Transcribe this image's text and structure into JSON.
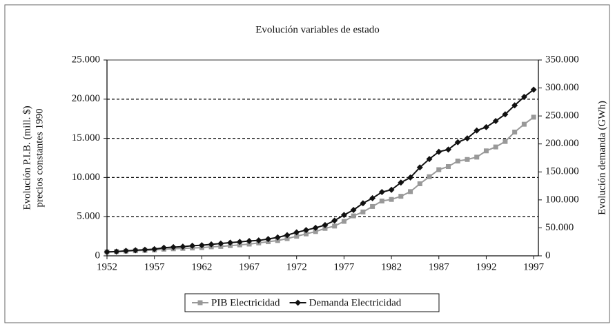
{
  "chart_data": {
    "type": "line",
    "title": "Evolución variables de estado",
    "y_label_lines": [
      "Evolución P.I.B. (mill. $)",
      "precios constantes 1990"
    ],
    "y2_label": "Evolución demanda (GWh)",
    "x": [
      1952,
      1953,
      1954,
      1955,
      1956,
      1957,
      1958,
      1959,
      1960,
      1961,
      1962,
      1963,
      1964,
      1965,
      1966,
      1967,
      1968,
      1969,
      1970,
      1971,
      1972,
      1973,
      1974,
      1975,
      1976,
      1977,
      1978,
      1979,
      1980,
      1981,
      1982,
      1983,
      1984,
      1985,
      1986,
      1987,
      1988,
      1989,
      1990,
      1991,
      1992,
      1993,
      1994,
      1995,
      1996,
      1997
    ],
    "series": [
      {
        "name": "PIB Electricidad",
        "color": "#999999",
        "marker": "square",
        "values": [
          500,
          550,
          600,
          650,
          700,
          750,
          850,
          900,
          950,
          1000,
          1050,
          1150,
          1200,
          1300,
          1400,
          1500,
          1650,
          1800,
          1950,
          2200,
          2500,
          2800,
          3100,
          3500,
          3800,
          4400,
          5100,
          5600,
          6300,
          7000,
          7200,
          7600,
          8200,
          9200,
          10100,
          11000,
          11400,
          12100,
          12300,
          12600,
          13400,
          13900,
          14600,
          15800,
          16800,
          17700
        ]
      },
      {
        "name": "Demanda Electricidad",
        "color": "#111111",
        "marker": "diamond",
        "axis": "y2",
        "values": [
          7000,
          7500,
          9000,
          10000,
          11000,
          12000,
          14500,
          15500,
          16500,
          18000,
          19000,
          20500,
          22000,
          23500,
          25000,
          26500,
          27500,
          30000,
          33000,
          37000,
          42000,
          46000,
          50000,
          55000,
          63000,
          73000,
          82000,
          94000,
          103000,
          114000,
          118000,
          131000,
          140000,
          158000,
          173000,
          186000,
          190000,
          203000,
          210000,
          224000,
          230000,
          241000,
          253000,
          269000,
          284000,
          297000
        ]
      }
    ],
    "xlim": [
      1952,
      1997.5
    ],
    "xticks": [
      1952,
      1957,
      1962,
      1967,
      1972,
      1977,
      1982,
      1987,
      1992,
      1997
    ],
    "ylim": [
      0,
      25000
    ],
    "yticks": [
      0,
      {
        "value": 5000,
        "label": "5.000"
      },
      {
        "value": 10000,
        "label": "10.000"
      },
      {
        "value": 15000,
        "label": "15.000"
      },
      {
        "value": 20000,
        "label": "20.000"
      },
      {
        "value": 25000,
        "label": "25.000"
      }
    ],
    "y2lim": [
      0,
      350000
    ],
    "y2ticks": [
      0,
      {
        "value": 50000,
        "label": "50.000"
      },
      {
        "value": 100000,
        "label": "100.000"
      },
      {
        "value": 150000,
        "label": "150.000"
      },
      {
        "value": 200000,
        "label": "200.000"
      },
      {
        "value": 250000,
        "label": "250.000"
      },
      {
        "value": 300000,
        "label": "300.000"
      },
      {
        "value": 350000,
        "label": "350.000"
      }
    ],
    "grid": true,
    "legend": "bottom"
  }
}
